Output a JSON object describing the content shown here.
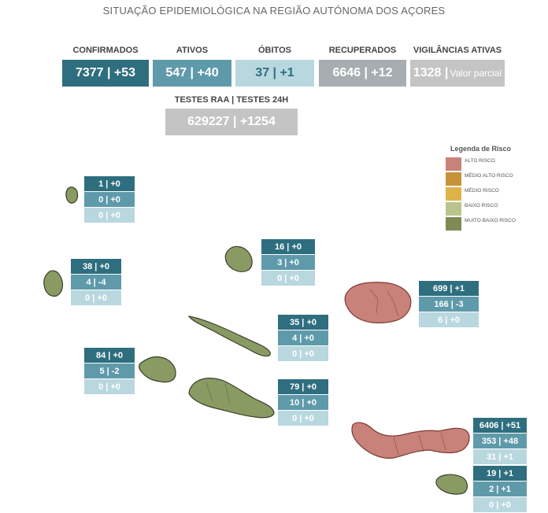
{
  "title": "SITUAÇÃO EPIDEMIOLÓGICA NA REGIÃO AUTÓNOMA DOS AÇORES",
  "kpis": {
    "confirmados": {
      "label": "CONFIRMADOS",
      "value": "7377 | +53"
    },
    "ativos": {
      "label": "ATIVOS",
      "value": "547 | +40"
    },
    "obitos": {
      "label": "ÓBITOS",
      "value": "37 | +1"
    },
    "recuperados": {
      "label": "RECUPERADOS",
      "value": "6646 | +12"
    },
    "vigilancias": {
      "label": "VIGILÂNCIAS ATIVAS",
      "value": "1328 |",
      "note": "Valor parcial"
    },
    "testes": {
      "label": "TESTES RAA | TESTES 24H",
      "value": "629227 | +1254"
    }
  },
  "legend": {
    "title": "Legenda de Risco",
    "items": [
      {
        "label": "ALTO RISCO",
        "color": "#c98279"
      },
      {
        "label": "MÉDIO ALTO RISCO",
        "color": "#c8923a"
      },
      {
        "label": "MÉDIO RISCO",
        "color": "#e0b24a"
      },
      {
        "label": "BAIXO RISCO",
        "color": "#b9c48d"
      },
      {
        "label": "MUITO BAIXO RISCO",
        "color": "#7f8a55"
      }
    ]
  },
  "islands": {
    "corvo": {
      "confirmados": "1 | +0",
      "ativos": "0 | +0",
      "obitos": "0 | +0",
      "risk": "MUITO BAIXO RISCO"
    },
    "flores": {
      "confirmados": "38 | +0",
      "ativos": "4 | -4",
      "obitos": "0 | +0",
      "risk": "MUITO BAIXO RISCO"
    },
    "graciosa": {
      "confirmados": "16 | +0",
      "ativos": "3 | +0",
      "obitos": "0 | +0",
      "risk": "MUITO BAIXO RISCO"
    },
    "terceira": {
      "confirmados": "699 | +1",
      "ativos": "166 | -3",
      "obitos": "6 | +0",
      "risk": "ALTO RISCO"
    },
    "sao_jorge": {
      "confirmados": "35 | +0",
      "ativos": "4 | +0",
      "obitos": "0 | +0",
      "risk": "MUITO BAIXO RISCO"
    },
    "faial": {
      "confirmados": "84 | +0",
      "ativos": "5 | -2",
      "obitos": "0 | +0",
      "risk": "MUITO BAIXO RISCO"
    },
    "pico": {
      "confirmados": "79 | +0",
      "ativos": "10 | +0",
      "obitos": "0 | +0",
      "risk": "MUITO BAIXO RISCO"
    },
    "sao_miguel": {
      "confirmados": "6406 | +51",
      "ativos": "353 | +48",
      "obitos": "31 | +1",
      "risk": "ALTO RISCO"
    },
    "santa_maria": {
      "confirmados": "19 | +1",
      "ativos": "2 | +1",
      "obitos": "0 | +0",
      "risk": "MUITO BAIXO RISCO"
    }
  }
}
